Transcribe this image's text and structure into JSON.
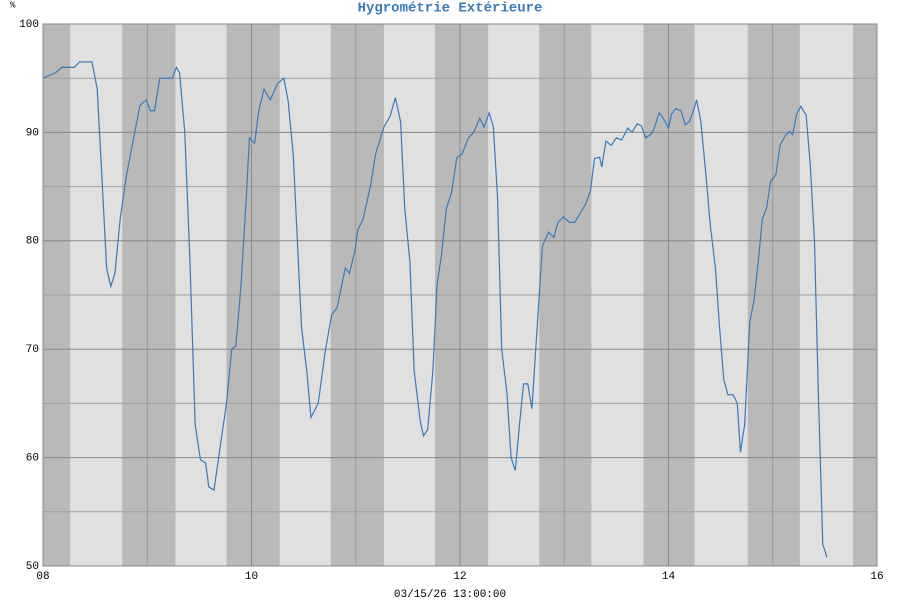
{
  "chart_data": {
    "type": "line",
    "title": "Hygrométrie Extérieure",
    "y_unit": "%",
    "xlabel": "03/15/26 13:00:00",
    "xlim": [
      8,
      16
    ],
    "xticks": [
      {
        "value": 8,
        "label": "08"
      },
      {
        "value": 10,
        "label": "10"
      },
      {
        "value": 12,
        "label": "12"
      },
      {
        "value": 14,
        "label": "14"
      },
      {
        "value": 16,
        "label": "16"
      }
    ],
    "xminor": [
      9,
      11,
      13,
      15
    ],
    "ylim": [
      50,
      100
    ],
    "yticks": [
      50,
      60,
      70,
      80,
      90,
      100
    ],
    "yminor": [
      55,
      65,
      75,
      85,
      95
    ],
    "grid": true,
    "shaded_periods": [
      [
        8.0,
        8.26
      ],
      [
        8.76,
        9.27
      ],
      [
        9.76,
        10.27
      ],
      [
        10.76,
        11.27
      ],
      [
        11.76,
        12.27
      ],
      [
        12.76,
        13.26
      ],
      [
        13.76,
        14.25
      ],
      [
        14.76,
        15.26
      ],
      [
        15.77,
        16.0
      ]
    ],
    "x": [
      8.0,
      8.12,
      8.18,
      8.3,
      8.35,
      8.47,
      8.52,
      8.57,
      8.61,
      8.65,
      8.69,
      8.74,
      8.8,
      8.86,
      8.93,
      8.99,
      9.03,
      9.07,
      9.12,
      9.18,
      9.24,
      9.28,
      9.31,
      9.36,
      9.41,
      9.46,
      9.51,
      9.56,
      9.59,
      9.64,
      9.7,
      9.76,
      9.81,
      9.85,
      9.9,
      9.95,
      9.98,
      10.03,
      10.07,
      10.12,
      10.18,
      10.25,
      10.31,
      10.35,
      10.4,
      10.44,
      10.48,
      10.53,
      10.57,
      10.64,
      10.71,
      10.77,
      10.82,
      10.9,
      10.94,
      10.99,
      11.02,
      11.07,
      11.14,
      11.19,
      11.27,
      11.33,
      11.38,
      11.43,
      11.47,
      11.52,
      11.56,
      11.62,
      11.65,
      11.69,
      11.74,
      11.78,
      11.82,
      11.87,
      11.92,
      11.97,
      12.02,
      12.08,
      12.13,
      12.19,
      12.23,
      12.28,
      12.32,
      12.36,
      12.4,
      12.45,
      12.49,
      12.53,
      12.57,
      12.61,
      12.65,
      12.69,
      12.74,
      12.79,
      12.85,
      12.9,
      12.94,
      12.99,
      13.05,
      13.1,
      13.15,
      13.2,
      13.25,
      13.29,
      13.34,
      13.36,
      13.4,
      13.45,
      13.5,
      13.55,
      13.61,
      13.65,
      13.7,
      13.74,
      13.78,
      13.83,
      13.86,
      13.91,
      13.95,
      14.0,
      14.03,
      14.07,
      14.12,
      14.16,
      14.2,
      14.24,
      14.27,
      14.31,
      14.36,
      14.4,
      14.45,
      14.49,
      14.53,
      14.57,
      14.62,
      14.66,
      14.69,
      14.73,
      14.78,
      14.82,
      14.86,
      14.9,
      14.94,
      14.98,
      15.03,
      15.07,
      15.12,
      15.16,
      15.19,
      15.23,
      15.27,
      15.32,
      15.36,
      15.4,
      15.44,
      15.48,
      15.52
    ],
    "series": [
      {
        "name": "Hygrométrie",
        "color": "#3a7ab8",
        "values": [
          95,
          95.5,
          96,
          96,
          96.5,
          96.5,
          94,
          85,
          77.5,
          75.8,
          77,
          82,
          86,
          89,
          92.5,
          93,
          92,
          92,
          95,
          95,
          95,
          96,
          95.5,
          90,
          78,
          63,
          59.8,
          59.5,
          57.3,
          57,
          61,
          65,
          70,
          70.3,
          76,
          84,
          89.5,
          89,
          92,
          94,
          93,
          94.5,
          95,
          93,
          88,
          80,
          72,
          68,
          63.7,
          65,
          70,
          73.2,
          73.8,
          77.5,
          77,
          79,
          81,
          82,
          85,
          88,
          90.5,
          91.5,
          93.2,
          91,
          83,
          78,
          68,
          63.3,
          62,
          62.6,
          68,
          76,
          78.5,
          83,
          84.5,
          87.7,
          88,
          89.5,
          90,
          91.3,
          90.5,
          91.8,
          90.5,
          84,
          70,
          66,
          60,
          58.8,
          63,
          66.8,
          66.8,
          64.5,
          72,
          79.5,
          80.8,
          80.3,
          81.7,
          82.2,
          81.7,
          81.7,
          82.5,
          83.3,
          84.5,
          87.6,
          87.7,
          86.8,
          89.2,
          88.8,
          89.5,
          89.3,
          90.4,
          90,
          90.8,
          90.6,
          89.5,
          89.8,
          90.3,
          91.8,
          91.3,
          90.4,
          91.7,
          92.2,
          92,
          90.7,
          91,
          92,
          93,
          91,
          86,
          81.5,
          77.5,
          72,
          67.2,
          65.8,
          65.8,
          65,
          60.5,
          63,
          72.5,
          74.5,
          78,
          82,
          83,
          85.5,
          86.1,
          88.8,
          89.7,
          90.1,
          89.8,
          91.7,
          92.4,
          91.6,
          87,
          80,
          65,
          52,
          50.8
        ]
      }
    ]
  }
}
